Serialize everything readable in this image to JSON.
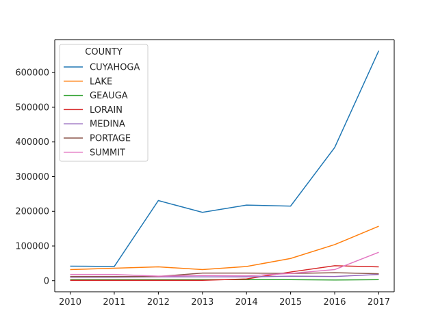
{
  "chart_data": {
    "type": "line",
    "x": [
      2010,
      2011,
      2012,
      2013,
      2014,
      2015,
      2016,
      2017
    ],
    "xticks": [
      "2010",
      "2011",
      "2012",
      "2013",
      "2014",
      "2015",
      "2016",
      "2017"
    ],
    "yticks": [
      "0",
      "100000",
      "200000",
      "300000",
      "400000",
      "500000",
      "600000"
    ],
    "ylim": [
      -32000,
      695000
    ],
    "grid": false,
    "legend": {
      "title": "COUNTY",
      "placement": "upper-left"
    },
    "series": [
      {
        "name": "CUYAHOGA",
        "color": "#1f77b4",
        "values": [
          42000,
          41000,
          231000,
          197000,
          218000,
          215000,
          384000,
          663000
        ]
      },
      {
        "name": "LAKE",
        "color": "#ff7f0e",
        "values": [
          32000,
          36000,
          40000,
          32000,
          41000,
          64000,
          104000,
          157000
        ]
      },
      {
        "name": "GEAUGA",
        "color": "#2ca02c",
        "values": [
          3000,
          3000,
          3000,
          3000,
          3000,
          3000,
          2000,
          3000
        ]
      },
      {
        "name": "LORAIN",
        "color": "#d62728",
        "values": [
          1000,
          1000,
          1000,
          1000,
          5000,
          25000,
          43000,
          40000
        ]
      },
      {
        "name": "MEDINA",
        "color": "#9467bd",
        "values": [
          10000,
          10000,
          11000,
          11000,
          11000,
          13000,
          12000,
          18000
        ]
      },
      {
        "name": "PORTAGE",
        "color": "#8c564b",
        "values": [
          12000,
          12000,
          12000,
          22000,
          22000,
          21000,
          23000,
          20000
        ]
      },
      {
        "name": "SUMMIT",
        "color": "#e377c2",
        "values": [
          18000,
          18000,
          13000,
          15000,
          14000,
          21000,
          32000,
          82000
        ]
      }
    ]
  }
}
